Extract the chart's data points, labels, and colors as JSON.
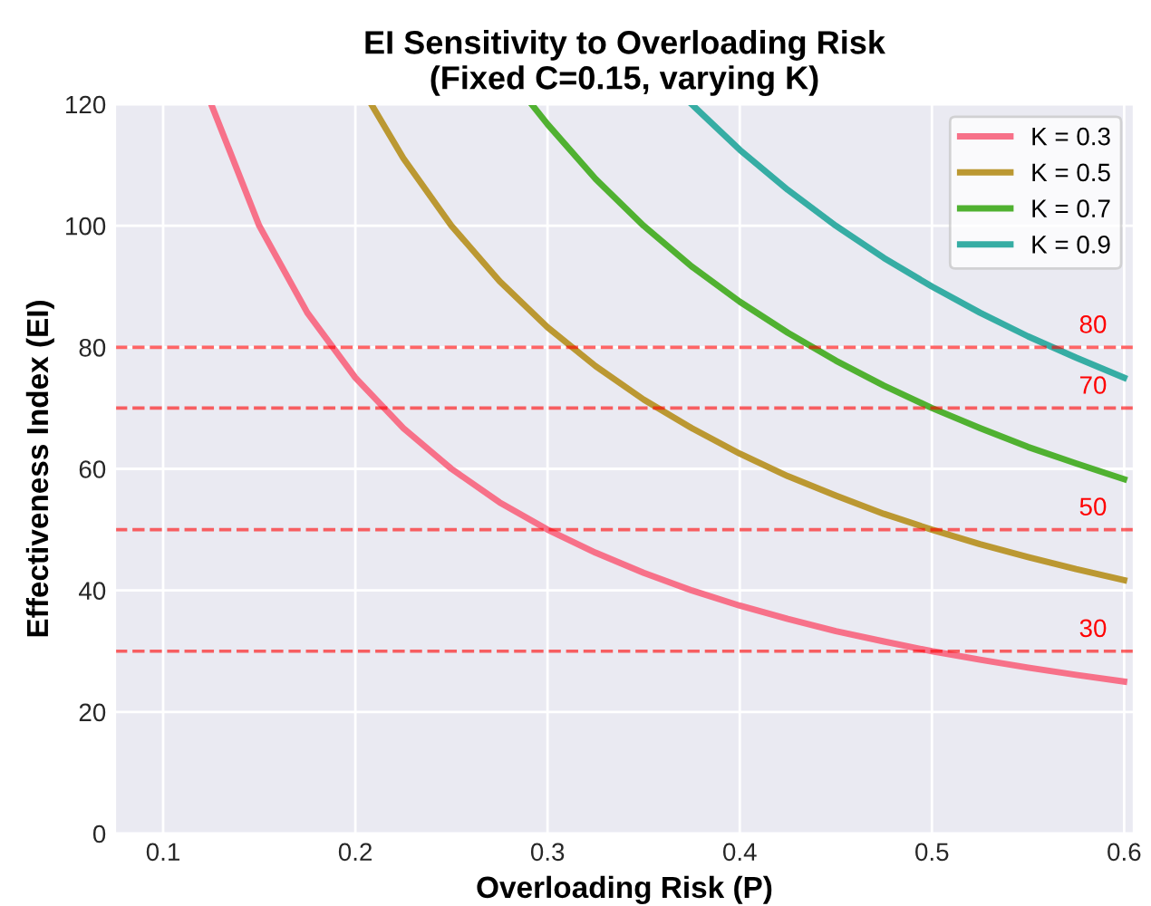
{
  "chart_data": {
    "type": "line",
    "title": "EI Sensitivity to Overloading Risk\n(Fixed C=0.15, varying K)",
    "xlabel": "Overloading Risk (P)",
    "ylabel": "Effectiveness Index (EI)",
    "xlim": [
      0.075,
      0.605
    ],
    "ylim": [
      0,
      120
    ],
    "xticks": [
      0.1,
      0.2,
      0.3,
      0.4,
      0.5,
      0.6
    ],
    "yticks": [
      0,
      20,
      40,
      60,
      80,
      100,
      120
    ],
    "grid": true,
    "legend": "top right",
    "marker": "none",
    "line_style": "solid",
    "series": [
      {
        "name": "K = 0.3",
        "color": "#f77189",
        "x": [
          0.125,
          0.15,
          0.175,
          0.2,
          0.225,
          0.25,
          0.275,
          0.3,
          0.325,
          0.35,
          0.375,
          0.4,
          0.425,
          0.45,
          0.475,
          0.5,
          0.525,
          0.55,
          0.575,
          0.6
        ],
        "values": [
          120,
          100,
          85.7,
          75,
          66.7,
          60,
          54.5,
          50,
          46.2,
          42.9,
          40,
          37.5,
          35.3,
          33.3,
          31.6,
          30,
          28.6,
          27.3,
          26.1,
          25
        ]
      },
      {
        "name": "K = 0.5",
        "color": "#bb9832",
        "x": [
          0.2083,
          0.225,
          0.25,
          0.275,
          0.3,
          0.325,
          0.35,
          0.375,
          0.4,
          0.425,
          0.45,
          0.475,
          0.5,
          0.525,
          0.55,
          0.575,
          0.6
        ],
        "values": [
          120,
          111.1,
          100,
          90.9,
          83.3,
          76.9,
          71.4,
          66.7,
          62.5,
          58.8,
          55.6,
          52.6,
          50,
          47.6,
          45.5,
          43.5,
          41.7
        ]
      },
      {
        "name": "K = 0.7",
        "color": "#50b131",
        "x": [
          0.2917,
          0.3,
          0.325,
          0.35,
          0.375,
          0.4,
          0.425,
          0.45,
          0.475,
          0.5,
          0.525,
          0.55,
          0.575,
          0.6
        ],
        "values": [
          120,
          116.7,
          107.7,
          100,
          93.3,
          87.5,
          82.4,
          77.8,
          73.7,
          70,
          66.7,
          63.6,
          60.9,
          58.3
        ]
      },
      {
        "name": "K = 0.9",
        "color": "#36ada4",
        "x": [
          0.375,
          0.4,
          0.425,
          0.45,
          0.475,
          0.5,
          0.525,
          0.55,
          0.575,
          0.6
        ],
        "values": [
          120,
          112.5,
          105.9,
          100,
          94.7,
          90,
          85.7,
          81.8,
          78.3,
          75
        ]
      }
    ],
    "ref_lines": [
      {
        "axis": "y",
        "value": 80,
        "label": "80",
        "color": "#ff0000",
        "line_style": "dashed"
      },
      {
        "axis": "y",
        "value": 70,
        "label": "70",
        "color": "#ff0000",
        "line_style": "dashed"
      },
      {
        "axis": "y",
        "value": 50,
        "label": "50",
        "color": "#ff0000",
        "line_style": "dashed"
      },
      {
        "axis": "y",
        "value": 30,
        "label": "30",
        "color": "#ff0000",
        "line_style": "dashed"
      }
    ]
  }
}
